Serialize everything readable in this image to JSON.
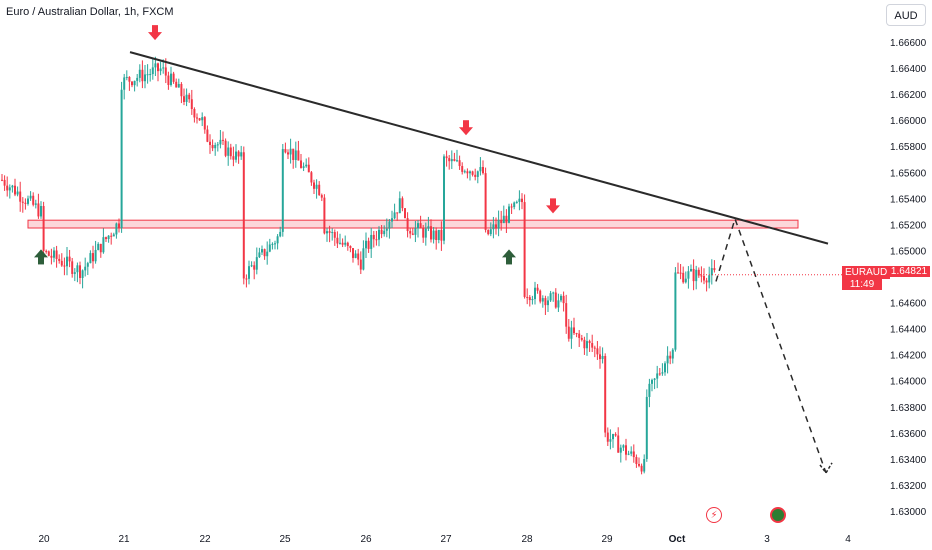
{
  "header": {
    "title": "Euro / Australian Dollar, 1h, FXCM"
  },
  "currency_button": {
    "label": "AUD"
  },
  "last_price": {
    "symbol": "EURAUD",
    "price": "1.64821",
    "countdown": "11:49"
  },
  "colors": {
    "up": "#26a69a",
    "down": "#f23645",
    "line": "#2a2a2a",
    "zone": "#f23645",
    "up_arrow": "#2e5e3a"
  },
  "icons": [
    "lightning-icon",
    "earth-icon"
  ],
  "chart_data": {
    "type": "candlestick",
    "symbol": "EURAUD",
    "timeframe": "1h",
    "ylim": [
      1.629,
      1.667
    ],
    "y_ticks": [
      "1.66600",
      "1.66400",
      "1.66200",
      "1.66000",
      "1.65800",
      "1.65600",
      "1.65400",
      "1.65200",
      "1.65000",
      "1.64600",
      "1.64400",
      "1.64200",
      "1.64000",
      "1.63800",
      "1.63600",
      "1.63400",
      "1.63200",
      "1.63000"
    ],
    "x_ticks": [
      "20",
      "21",
      "22",
      "25",
      "26",
      "27",
      "28",
      "29",
      "Oct",
      "3",
      "4"
    ],
    "trendline": {
      "from": {
        "x": "21",
        "y": 1.6653
      },
      "to": {
        "x": "3+",
        "y": 1.6506
      }
    },
    "resistance_zone": {
      "low": 1.6518,
      "high": 1.6524
    },
    "projection": [
      {
        "x": "Oct",
        "y": 1.6477
      },
      {
        "x": "Oct+",
        "y": 1.6525
      },
      {
        "x": "3+",
        "y": 1.633
      }
    ],
    "markers": [
      {
        "type": "down-arrow",
        "x": "21",
        "y": 1.6663
      },
      {
        "type": "down-arrow",
        "x": "27",
        "y": 1.659
      },
      {
        "type": "down-arrow",
        "x": "28",
        "y": 1.653
      },
      {
        "type": "up-arrow",
        "x": "20",
        "y": 1.651
      },
      {
        "type": "up-arrow",
        "x": "27",
        "y": 1.651
      }
    ],
    "anchors": [
      {
        "x": "19",
        "y": 1.6555
      },
      {
        "x": "20",
        "y": 1.653
      },
      {
        "x": "20",
        "y": 1.65
      },
      {
        "x": "20+",
        "y": 1.6485
      },
      {
        "x": "21",
        "y": 1.6525
      },
      {
        "x": "21",
        "y": 1.658
      },
      {
        "x": "21",
        "y": 1.663
      },
      {
        "x": "21+",
        "y": 1.664
      },
      {
        "x": "22",
        "y": 1.66
      },
      {
        "x": "22",
        "y": 1.663
      },
      {
        "x": "22",
        "y": 1.659
      },
      {
        "x": "22+",
        "y": 1.657
      },
      {
        "x": "22+",
        "y": 1.6495
      },
      {
        "x": "22+",
        "y": 1.648
      },
      {
        "x": "25",
        "y": 1.6515
      },
      {
        "x": "25",
        "y": 1.657
      },
      {
        "x": "25",
        "y": 1.6585
      },
      {
        "x": "25+",
        "y": 1.6545
      },
      {
        "x": "25+",
        "y": 1.652
      },
      {
        "x": "26",
        "y": 1.649
      },
      {
        "x": "26",
        "y": 1.648
      },
      {
        "x": "26",
        "y": 1.65
      },
      {
        "x": "26+",
        "y": 1.654
      },
      {
        "x": "26+",
        "y": 1.652
      },
      {
        "x": "27",
        "y": 1.651
      },
      {
        "x": "27",
        "y": 1.654
      },
      {
        "x": "27",
        "y": 1.657
      },
      {
        "x": "27+",
        "y": 1.656
      },
      {
        "x": "27+",
        "y": 1.649
      },
      {
        "x": "27+",
        "y": 1.651
      },
      {
        "x": "28",
        "y": 1.654
      },
      {
        "x": "28",
        "y": 1.65
      },
      {
        "x": "28",
        "y": 1.647
      },
      {
        "x": "28+",
        "y": 1.646
      },
      {
        "x": "28+",
        "y": 1.644
      },
      {
        "x": "29",
        "y": 1.642
      },
      {
        "x": "29",
        "y": 1.6395
      },
      {
        "x": "29",
        "y": 1.636
      },
      {
        "x": "29+",
        "y": 1.6335
      },
      {
        "x": "29+",
        "y": 1.633
      },
      {
        "x": "29+",
        "y": 1.6385
      },
      {
        "x": "Oct",
        "y": 1.643
      },
      {
        "x": "Oct",
        "y": 1.642
      },
      {
        "x": "Oct",
        "y": 1.6405
      },
      {
        "x": "Oct",
        "y": 1.646
      },
      {
        "x": "Oct",
        "y": 1.651
      },
      {
        "x": "Oct",
        "y": 1.6482
      }
    ]
  }
}
